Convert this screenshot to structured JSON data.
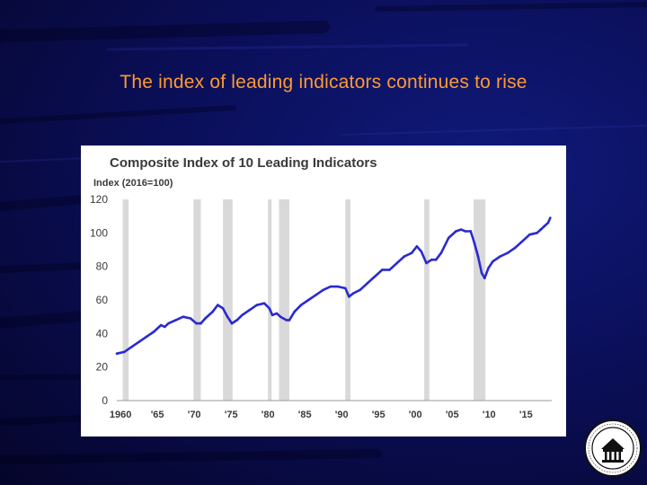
{
  "slide": {
    "title": "The index of leading indicators continues to rise"
  },
  "colors": {
    "background": "#0a0a46",
    "title": "#ff9a2e",
    "series_line": "#2a2ad0",
    "recession_band": "#d9d9d9",
    "panel": "#ffffff"
  },
  "seal": {
    "icon": "federal-reserve-seal-icon"
  },
  "chart_data": {
    "type": "line",
    "title": "Composite Index of 10 Leading Indicators",
    "ylabel": "Index (2016=100)",
    "xlabel": "",
    "xlim": [
      1959.5,
      2018.5
    ],
    "ylim": [
      0,
      120
    ],
    "yticks": [
      0,
      20,
      40,
      60,
      80,
      100,
      120
    ],
    "xticks": [
      1960,
      1965,
      1970,
      1975,
      1980,
      1985,
      1990,
      1995,
      2000,
      2005,
      2010,
      2015
    ],
    "xtick_labels": [
      "1960",
      "'65",
      "'70",
      "'75",
      "'80",
      "'85",
      "'90",
      "'95",
      "'00",
      "'05",
      "'10",
      "'15"
    ],
    "grid": false,
    "recessions": [
      [
        1960.3,
        1961.1
      ],
      [
        1969.9,
        1970.9
      ],
      [
        1973.9,
        1975.2
      ],
      [
        1980.0,
        1980.5
      ],
      [
        1981.5,
        1982.9
      ],
      [
        1990.5,
        1991.2
      ],
      [
        2001.2,
        2001.9
      ],
      [
        2007.9,
        2009.5
      ]
    ],
    "series": [
      {
        "x": [
          1959.5,
          1960.5,
          1961.5,
          1962.5,
          1963.5,
          1964.5,
          1965.5,
          1966.0,
          1966.5,
          1967.5,
          1968.5,
          1969.5,
          1970.3,
          1970.9,
          1971.5,
          1972.5,
          1973.2,
          1973.9,
          1974.5,
          1975.1,
          1975.8,
          1976.5,
          1977.5,
          1978.5,
          1979.5,
          1980.2,
          1980.6,
          1981.2,
          1981.7,
          1982.5,
          1982.9,
          1983.6,
          1984.5,
          1985.5,
          1986.5,
          1987.5,
          1988.5,
          1989.5,
          1990.5,
          1991.0,
          1991.6,
          1992.5,
          1993.5,
          1994.5,
          1995.5,
          1996.5,
          1997.5,
          1998.5,
          1999.5,
          2000.2,
          2000.8,
          2001.5,
          2002.2,
          2002.8,
          2003.5,
          2004.5,
          2005.5,
          2006.2,
          2006.8,
          2007.5,
          2008.0,
          2008.5,
          2009.0,
          2009.4,
          2009.9,
          2010.5,
          2011.5,
          2012.5,
          2013.5,
          2014.5,
          2015.5,
          2016.5,
          2017.0,
          2017.5,
          2018.0,
          2018.3
        ],
        "values": [
          28,
          29,
          32,
          35,
          38,
          41,
          45,
          44,
          46,
          48,
          50,
          49,
          46,
          46,
          49,
          53,
          57,
          55,
          50,
          46,
          48,
          51,
          54,
          57,
          58,
          55,
          51,
          52,
          50,
          48,
          48,
          53,
          57,
          60,
          63,
          66,
          68,
          68,
          67,
          62,
          64,
          66,
          70,
          74,
          78,
          78,
          82,
          86,
          88,
          92,
          89,
          82,
          84,
          84,
          88,
          97,
          101,
          102,
          101,
          101,
          94,
          86,
          76,
          73,
          79,
          83,
          86,
          88,
          91,
          95,
          99,
          100,
          102,
          104,
          106,
          109
        ]
      }
    ]
  }
}
